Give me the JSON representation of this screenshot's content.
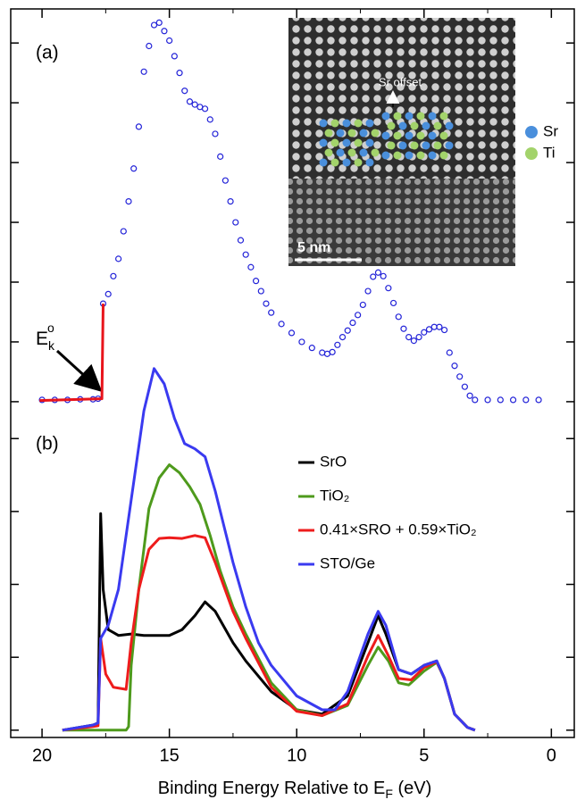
{
  "chart_data": [
    {
      "type": "scatter",
      "panel_label": "(a)",
      "xlim": [
        21.23,
        -0.9
      ],
      "ylim": [
        -0.3,
        6.57
      ],
      "yticks": [
        0,
        1,
        2,
        3,
        4,
        5,
        6
      ],
      "annotation": {
        "text": "E",
        "sub": "k",
        "sup": "o"
      },
      "inset": {
        "annotation": "Sr offset",
        "scale_bar": "5 nm",
        "legend": [
          {
            "name": "Sr",
            "color": "#4a8fdc"
          },
          {
            "name": "Ti",
            "color": "#a3d36b"
          }
        ]
      },
      "series": [
        {
          "color": "#2323d8",
          "marker": "open-circle",
          "x": [
            20.0,
            19.5,
            19.0,
            18.5,
            18.0,
            17.8,
            17.6,
            17.4,
            17.2,
            17.0,
            16.8,
            16.6,
            16.4,
            16.2,
            16.0,
            15.8,
            15.6,
            15.4,
            15.2,
            15.0,
            14.8,
            14.6,
            14.4,
            14.2,
            14.0,
            13.8,
            13.6,
            13.4,
            13.2,
            13.0,
            12.8,
            12.6,
            12.4,
            12.2,
            12.0,
            11.8,
            11.6,
            11.4,
            11.2,
            11.0,
            10.6,
            10.2,
            9.8,
            9.4,
            9.0,
            8.8,
            8.6,
            8.4,
            8.2,
            8.0,
            7.8,
            7.6,
            7.4,
            7.2,
            7.0,
            6.8,
            6.6,
            6.4,
            6.2,
            6.0,
            5.8,
            5.6,
            5.4,
            5.2,
            5.0,
            4.8,
            4.6,
            4.4,
            4.2,
            4.0,
            3.8,
            3.6,
            3.4,
            3.2,
            3.0,
            2.5,
            2.0,
            1.5,
            1.0,
            0.5
          ],
          "values": [
            0.03,
            0.03,
            0.03,
            0.04,
            0.04,
            0.05,
            1.64,
            1.8,
            2.1,
            2.39,
            2.85,
            3.35,
            3.9,
            4.6,
            5.52,
            5.95,
            6.3,
            6.34,
            6.2,
            6.04,
            5.78,
            5.5,
            5.2,
            5.02,
            4.97,
            4.93,
            4.9,
            4.72,
            4.48,
            4.1,
            3.7,
            3.35,
            3.0,
            2.7,
            2.46,
            2.25,
            2.02,
            1.85,
            1.64,
            1.49,
            1.3,
            1.15,
            1.0,
            0.9,
            0.82,
            0.8,
            0.83,
            0.95,
            1.08,
            1.19,
            1.32,
            1.45,
            1.62,
            1.85,
            2.09,
            2.16,
            2.1,
            1.9,
            1.65,
            1.42,
            1.22,
            1.08,
            1.02,
            1.08,
            1.16,
            1.21,
            1.25,
            1.25,
            1.2,
            0.82,
            0.6,
            0.42,
            0.25,
            0.1,
            0.03,
            0.03,
            0.03,
            0.03,
            0.03,
            0.03
          ]
        },
        {
          "color": "#e8141b",
          "style": "line",
          "x": [
            20.1,
            17.7,
            17.65,
            17.6
          ],
          "values": [
            0.02,
            0.05,
            0.05,
            1.64
          ]
        }
      ]
    },
    {
      "type": "line",
      "panel_label": "(b)",
      "xlim": [
        21.23,
        -0.9
      ],
      "ylim": [
        -0.1,
        4.26
      ],
      "yticks": [
        0,
        1,
        2,
        3,
        4
      ],
      "xticks": [
        20,
        15,
        10,
        5,
        0
      ],
      "xminor": [
        17.5,
        12.5,
        7.5,
        2.5
      ],
      "xlabel": {
        "text": "Binding Energy Relative to E",
        "sub": "F",
        "after": " (eV)"
      },
      "series": [
        {
          "name": "SrO",
          "color": "#000000",
          "x": [
            19.2,
            18.0,
            17.8,
            17.7,
            17.6,
            17.4,
            17.0,
            16.5,
            16.0,
            15.0,
            14.5,
            14.0,
            13.6,
            13.2,
            12.5,
            12.0,
            11.0,
            10.0,
            9.0,
            8.0,
            7.2,
            6.8,
            6.5,
            6.0,
            5.5,
            5.0,
            4.5,
            4.2,
            3.8,
            3.3,
            3.0
          ],
          "values": [
            0,
            0.07,
            0.1,
            2.97,
            1.93,
            1.38,
            1.3,
            1.32,
            1.3,
            1.3,
            1.38,
            1.57,
            1.76,
            1.63,
            1.2,
            0.95,
            0.53,
            0.28,
            0.22,
            0.47,
            1.2,
            1.57,
            1.32,
            0.83,
            0.77,
            0.89,
            0.95,
            0.71,
            0.22,
            0.04,
            0
          ]
        },
        {
          "name": "TiO₂",
          "color": "#4e9a1c",
          "x": [
            19.2,
            16.7,
            16.6,
            16.5,
            16.2,
            15.8,
            15.4,
            15.0,
            14.6,
            14.2,
            13.8,
            13.4,
            13.0,
            12.5,
            12.0,
            11.0,
            10.0,
            9.0,
            8.0,
            7.2,
            6.8,
            6.4,
            6.0,
            5.6,
            5.0,
            4.5,
            4.2,
            3.8,
            3.3,
            3.0
          ],
          "values": [
            0,
            0,
            0.05,
            0.89,
            1.93,
            3.04,
            3.46,
            3.64,
            3.53,
            3.34,
            3.1,
            2.67,
            2.18,
            1.69,
            1.32,
            0.65,
            0.28,
            0.2,
            0.34,
            0.89,
            1.14,
            0.95,
            0.65,
            0.62,
            0.81,
            0.93,
            0.71,
            0.22,
            0.04,
            0
          ]
        },
        {
          "name": "0.41×SRO + 0.59×TiO₂",
          "color": "#ee1c1c",
          "x": [
            19.2,
            18.0,
            17.8,
            17.7,
            17.5,
            17.2,
            16.7,
            16.5,
            16.2,
            15.8,
            15.4,
            15.0,
            14.5,
            14.0,
            13.6,
            13.2,
            12.5,
            12.0,
            11.0,
            10.0,
            9.0,
            8.0,
            7.2,
            6.8,
            6.4,
            6.0,
            5.5,
            5.0,
            4.5,
            4.2,
            3.8,
            3.3,
            3.0
          ],
          "values": [
            0,
            0.05,
            0.06,
            1.26,
            0.77,
            0.59,
            0.56,
            1.2,
            1.93,
            2.48,
            2.63,
            2.64,
            2.63,
            2.67,
            2.64,
            2.3,
            1.63,
            1.26,
            0.59,
            0.26,
            0.2,
            0.36,
            1.02,
            1.3,
            1.02,
            0.71,
            0.69,
            0.86,
            0.94,
            0.71,
            0.22,
            0.04,
            0
          ]
        },
        {
          "name": "STO/Ge",
          "color": "#3a3af0",
          "x": [
            19.2,
            18.0,
            17.8,
            17.7,
            17.4,
            17.0,
            16.5,
            16.0,
            15.6,
            15.2,
            14.8,
            14.4,
            14.0,
            13.6,
            13.2,
            12.5,
            12.0,
            11.5,
            11.0,
            10.0,
            9.0,
            8.5,
            8.0,
            7.2,
            6.8,
            6.5,
            6.0,
            5.5,
            5.0,
            4.5,
            4.2,
            3.8,
            3.3,
            3.0
          ],
          "values": [
            0,
            0.07,
            0.1,
            1.26,
            1.44,
            1.93,
            3.16,
            4.38,
            4.96,
            4.75,
            4.28,
            3.93,
            3.86,
            3.75,
            3.28,
            2.3,
            1.69,
            1.2,
            0.89,
            0.47,
            0.28,
            0.28,
            0.53,
            1.32,
            1.63,
            1.44,
            0.83,
            0.77,
            0.89,
            0.95,
            0.71,
            0.22,
            0.04,
            0
          ]
        }
      ]
    }
  ]
}
